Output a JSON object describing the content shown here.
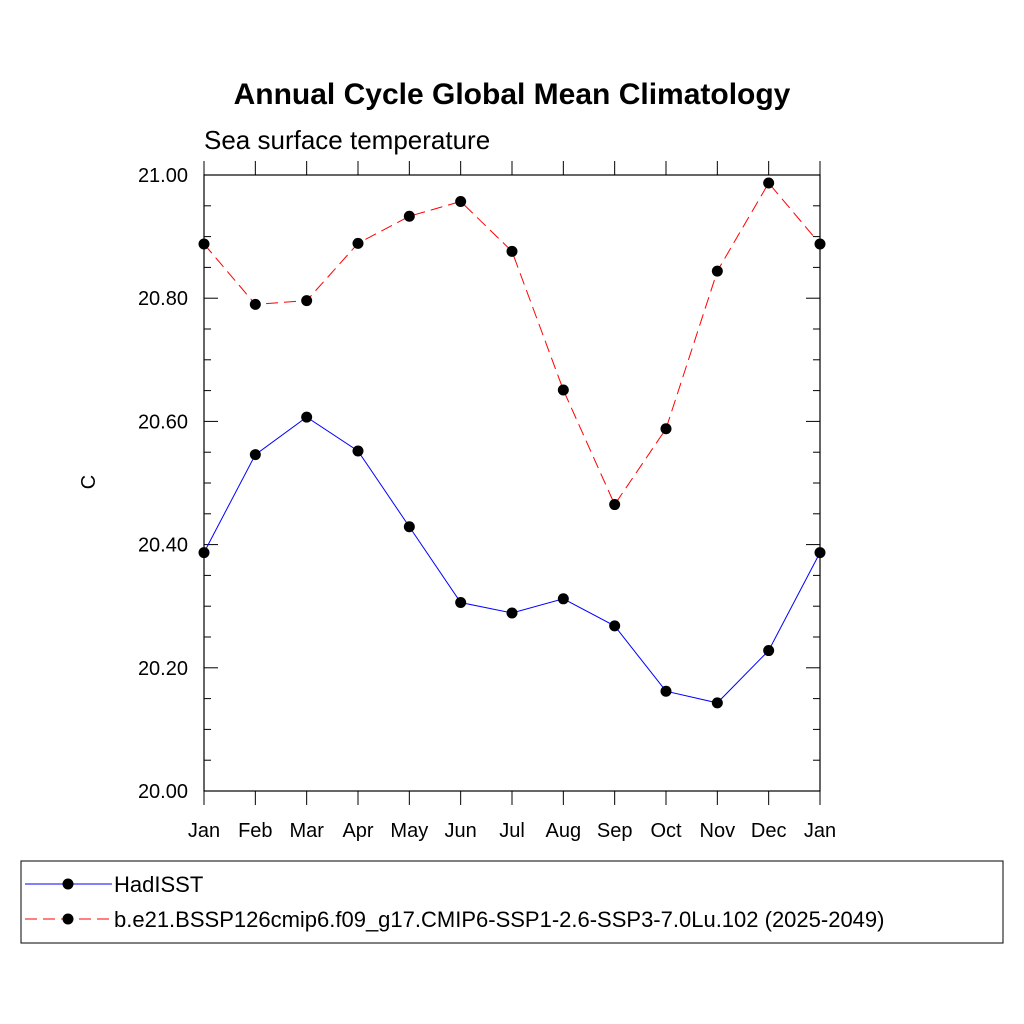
{
  "chart_data": {
    "type": "line",
    "title": "Annual Cycle Global Mean Climatology",
    "subtitle": "Sea surface temperature",
    "xlabel": "",
    "ylabel": "C",
    "categories": [
      "Jan",
      "Feb",
      "Mar",
      "Apr",
      "May",
      "Jun",
      "Jul",
      "Aug",
      "Sep",
      "Oct",
      "Nov",
      "Dec",
      "Jan"
    ],
    "ylim": [
      20.0,
      21.0
    ],
    "yticks": [
      "20.00",
      "20.20",
      "20.40",
      "20.60",
      "20.80",
      "21.00"
    ],
    "grid": false,
    "legend_position": "bottom",
    "series": [
      {
        "name": "HadISST",
        "color": "#0000ff",
        "dash": "solid",
        "marker": "filled-circle",
        "values": [
          20.387,
          20.546,
          20.607,
          20.552,
          20.429,
          20.306,
          20.289,
          20.312,
          20.268,
          20.162,
          20.143,
          20.228,
          20.387
        ]
      },
      {
        "name": "b.e21.BSSP126cmip6.f09_g17.CMIP6-SSP1-2.6-SSP3-7.0Lu.102 (2025-2049)",
        "color": "#ff0000",
        "dash": "dashed",
        "marker": "filled-circle",
        "values": [
          20.888,
          20.79,
          20.796,
          20.889,
          20.933,
          20.957,
          20.876,
          20.651,
          20.465,
          20.588,
          20.844,
          20.987,
          20.888
        ]
      }
    ]
  }
}
